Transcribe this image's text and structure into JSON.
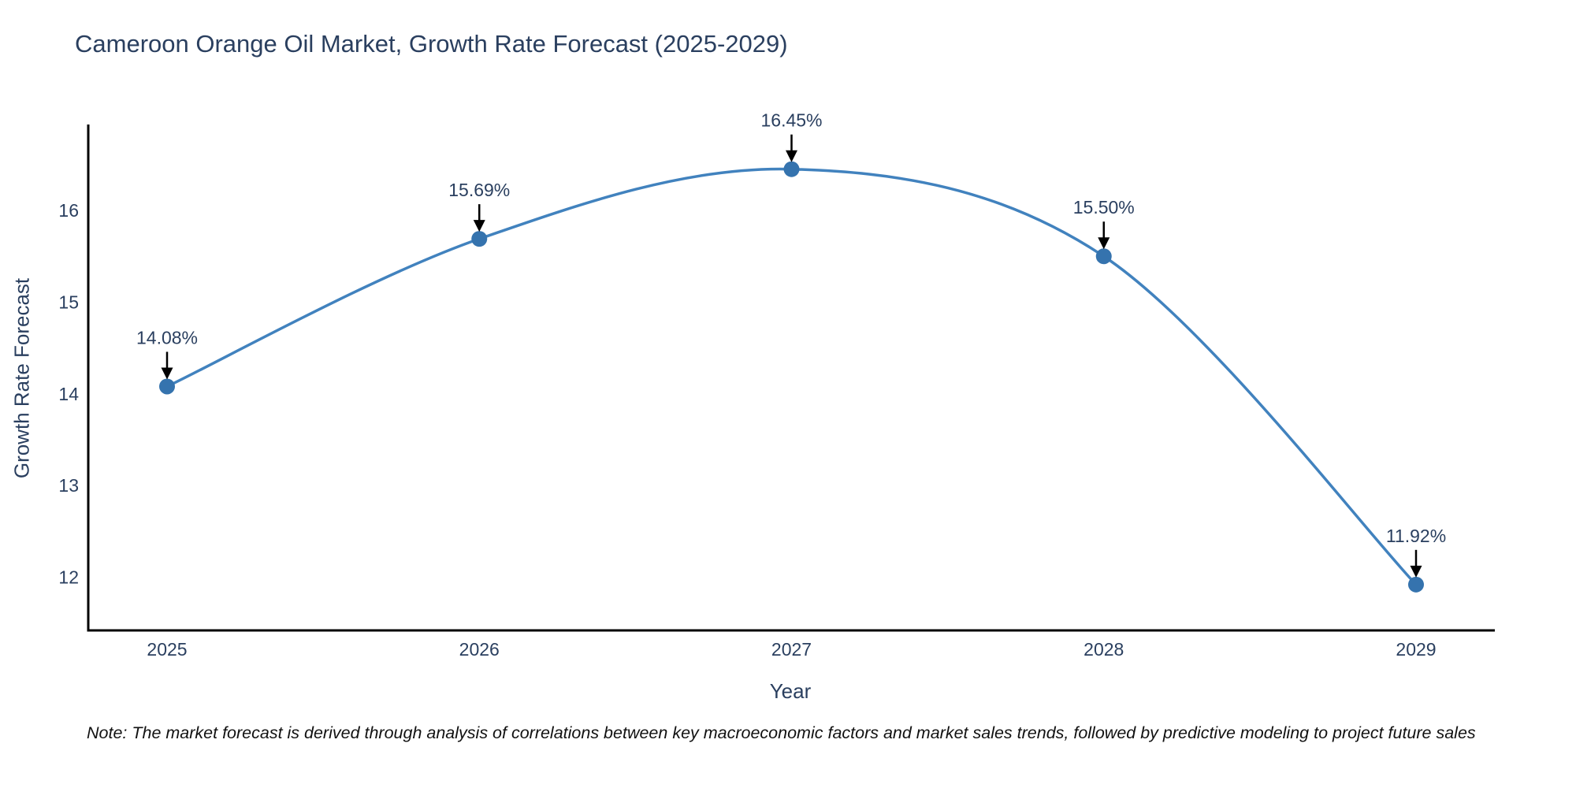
{
  "title": "Cameroon Orange Oil Market, Growth Rate Forecast (2025-2029)",
  "note": "Note: The market forecast is derived through analysis of correlations between key macroeconomic factors and market sales trends, followed by predictive modeling to project future sales",
  "chart_data": {
    "type": "line",
    "title": "Cameroon Orange Oil Market, Growth Rate Forecast (2025-2029)",
    "xlabel": "Year",
    "ylabel": "Growth Rate Forecast",
    "x": [
      2025,
      2026,
      2027,
      2028,
      2029
    ],
    "values": [
      14.08,
      15.69,
      16.45,
      15.5,
      11.92
    ],
    "point_labels": [
      "14.08%",
      "15.69%",
      "16.45%",
      "15.50%",
      "11.92%"
    ],
    "yticks": [
      12,
      13,
      14,
      15,
      16
    ],
    "ylim": [
      11.42,
      16.92
    ],
    "line_shape": "spline",
    "grid": false,
    "legend_position": "none",
    "colors": {
      "line": "#4182be",
      "marker": "#3573ae",
      "axis": "#000000",
      "axis_text": "#2a3f5f",
      "annotation_text": "#2a3f5f",
      "annotation_arrow": "#000000"
    }
  }
}
